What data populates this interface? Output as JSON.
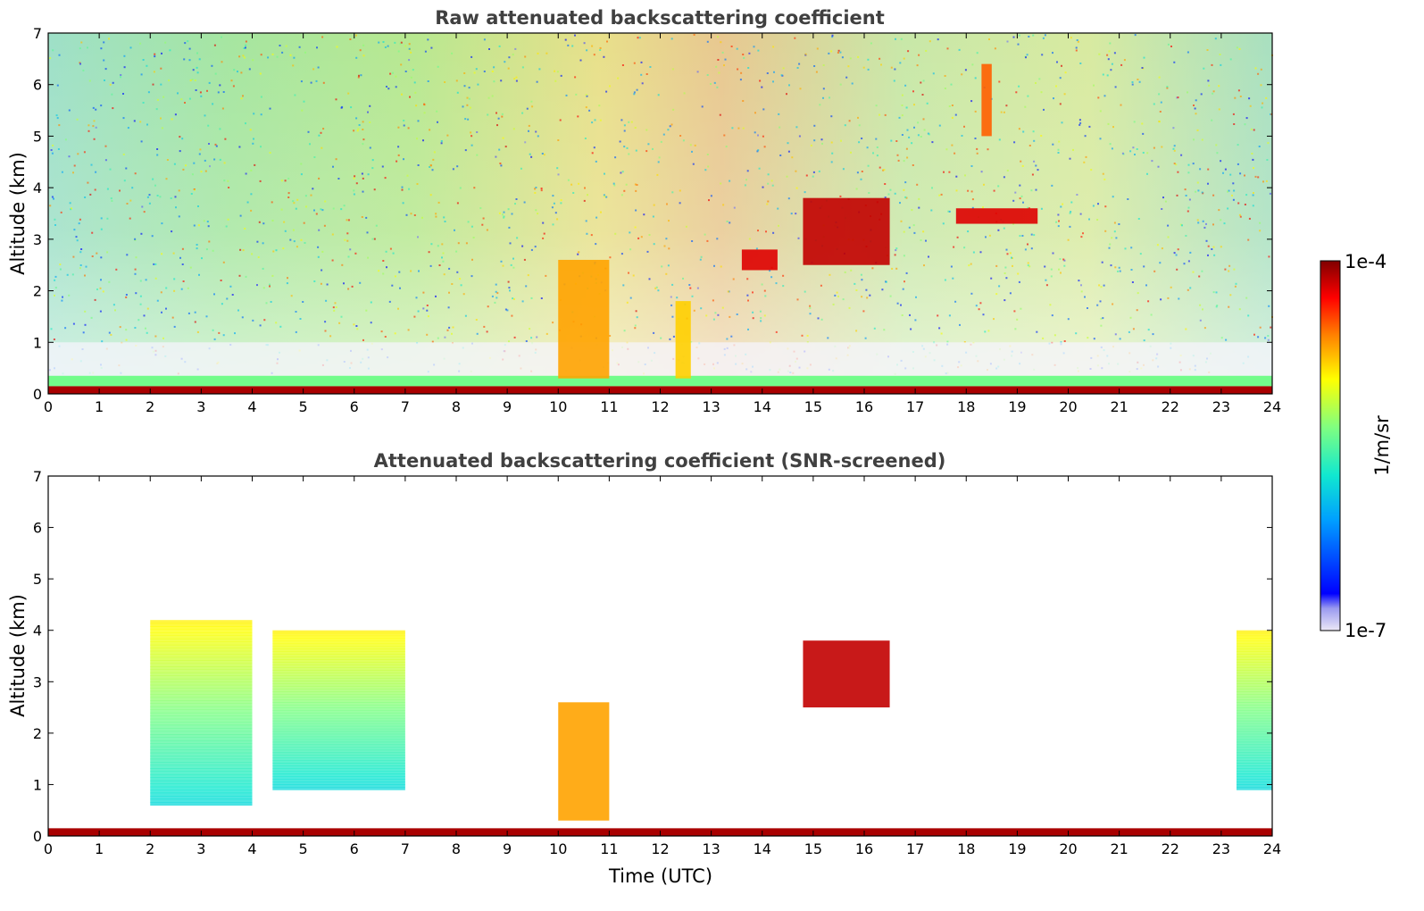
{
  "chart_data": [
    {
      "type": "heatmap",
      "title": "Raw attenuated backscattering coefficient",
      "xlabel": "",
      "ylabel": "Altitude (km)",
      "xlim": [
        0,
        24
      ],
      "ylim": [
        0,
        7
      ],
      "xticks": [
        "0",
        "1",
        "2",
        "3",
        "4",
        "5",
        "6",
        "7",
        "8",
        "9",
        "10",
        "11",
        "12",
        "13",
        "14",
        "15",
        "16",
        "17",
        "18",
        "19",
        "20",
        "21",
        "22",
        "23",
        "24"
      ],
      "yticks": [
        "0",
        "1",
        "2",
        "3",
        "4",
        "5",
        "6",
        "7"
      ],
      "features": [
        {
          "kind": "surface-layer",
          "x": [
            0,
            24
          ],
          "y": [
            0,
            0.15
          ],
          "value": 8e-05
        },
        {
          "kind": "boundary-layer",
          "x": [
            0,
            24
          ],
          "y": [
            0.15,
            0.35
          ],
          "value": 4e-06
        },
        {
          "kind": "cloud",
          "x": [
            10.0,
            11.0
          ],
          "y": [
            0.3,
            2.6
          ],
          "value": 2e-05
        },
        {
          "kind": "cloud",
          "x": [
            12.3,
            12.6
          ],
          "y": [
            0.3,
            1.8
          ],
          "value": 1.5e-05
        },
        {
          "kind": "cloud",
          "x": [
            13.6,
            14.3
          ],
          "y": [
            2.4,
            2.8
          ],
          "value": 6e-05
        },
        {
          "kind": "cloud",
          "x": [
            14.8,
            16.5
          ],
          "y": [
            2.5,
            3.8
          ],
          "value": 7e-05
        },
        {
          "kind": "cloud",
          "x": [
            17.8,
            19.4
          ],
          "y": [
            3.3,
            3.6
          ],
          "value": 6e-05
        },
        {
          "kind": "cloud",
          "x": [
            18.3,
            18.5
          ],
          "y": [
            5.0,
            6.4
          ],
          "value": 3e-05
        }
      ]
    },
    {
      "type": "heatmap",
      "title": "Attenuated backscattering coefficient (SNR-screened)",
      "xlabel": "Time (UTC)",
      "ylabel": "Altitude (km)",
      "xlim": [
        0,
        24
      ],
      "ylim": [
        0,
        7
      ],
      "xticks": [
        "0",
        "1",
        "2",
        "3",
        "4",
        "5",
        "6",
        "7",
        "8",
        "9",
        "10",
        "11",
        "12",
        "13",
        "14",
        "15",
        "16",
        "17",
        "18",
        "19",
        "20",
        "21",
        "22",
        "23",
        "24"
      ],
      "yticks": [
        "0",
        "1",
        "2",
        "3",
        "4",
        "5",
        "6",
        "7"
      ],
      "features": [
        {
          "kind": "surface-layer",
          "x": [
            0,
            24
          ],
          "y": [
            0,
            0.15
          ],
          "value": 8e-05
        },
        {
          "kind": "aerosol",
          "x": [
            2.0,
            4.0
          ],
          "y": [
            0.6,
            4.2
          ],
          "value": 3e-06
        },
        {
          "kind": "aerosol",
          "x": [
            4.4,
            7.0
          ],
          "y": [
            0.9,
            4.0
          ],
          "value": 3e-06
        },
        {
          "kind": "cloud",
          "x": [
            10.0,
            11.0
          ],
          "y": [
            0.3,
            2.6
          ],
          "value": 2e-05
        },
        {
          "kind": "cloud",
          "x": [
            14.8,
            16.5
          ],
          "y": [
            2.5,
            3.8
          ],
          "value": 7e-05
        },
        {
          "kind": "aerosol",
          "x": [
            23.3,
            24.0
          ],
          "y": [
            0.9,
            4.0
          ],
          "value": 3e-06
        }
      ]
    }
  ],
  "colorbar": {
    "max_label": "1e-4",
    "min_label": "1e-7",
    "unit_label": "1/m/sr",
    "colormap": "jet",
    "scale": "log"
  }
}
